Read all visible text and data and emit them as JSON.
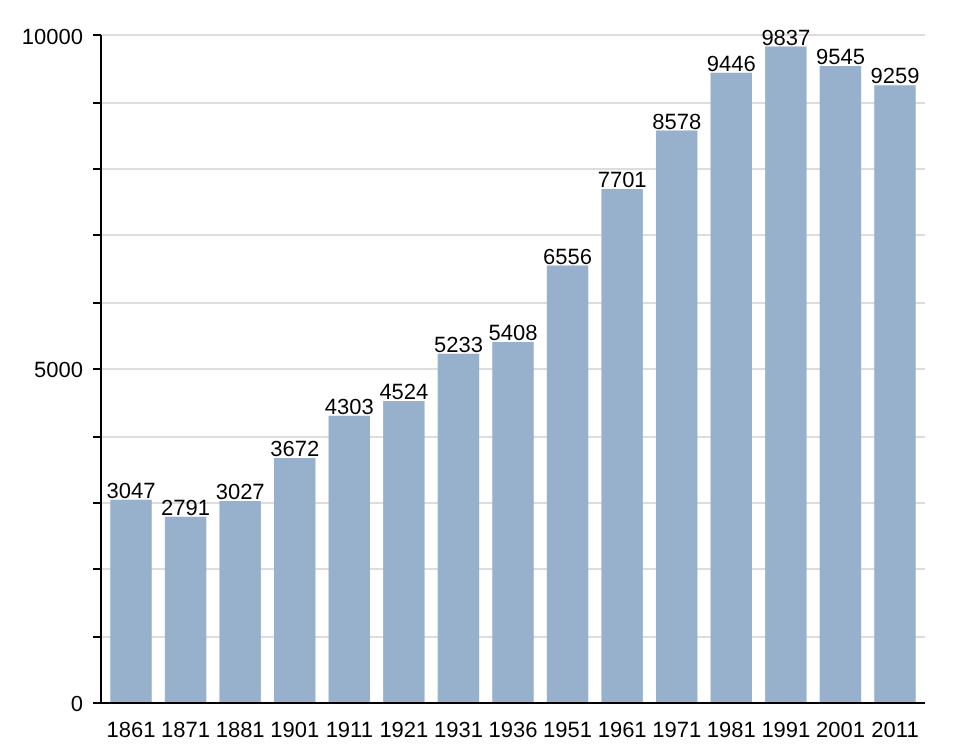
{
  "chart_data": {
    "type": "bar",
    "categories": [
      "1861",
      "1871",
      "1881",
      "1901",
      "1911",
      "1921",
      "1931",
      "1936",
      "1951",
      "1961",
      "1971",
      "1981",
      "1991",
      "2001",
      "2011"
    ],
    "values": [
      3047,
      2791,
      3027,
      3672,
      4303,
      4524,
      5233,
      5408,
      6556,
      7701,
      8578,
      9446,
      9837,
      9545,
      9259
    ],
    "color": "#97b0cc",
    "data_labels": true,
    "grid": "y",
    "ylim": [
      0,
      10000
    ],
    "yticks": [
      0,
      {
        "value": 1000,
        "label": null
      },
      {
        "value": 2000,
        "label": null
      },
      {
        "value": 3000,
        "label": null
      },
      {
        "value": 4000,
        "label": null
      },
      5000,
      {
        "value": 6000,
        "label": null
      },
      {
        "value": 7000,
        "label": null
      },
      {
        "value": 8000,
        "label": null
      },
      {
        "value": 9000,
        "label": null
      },
      10000
    ]
  }
}
